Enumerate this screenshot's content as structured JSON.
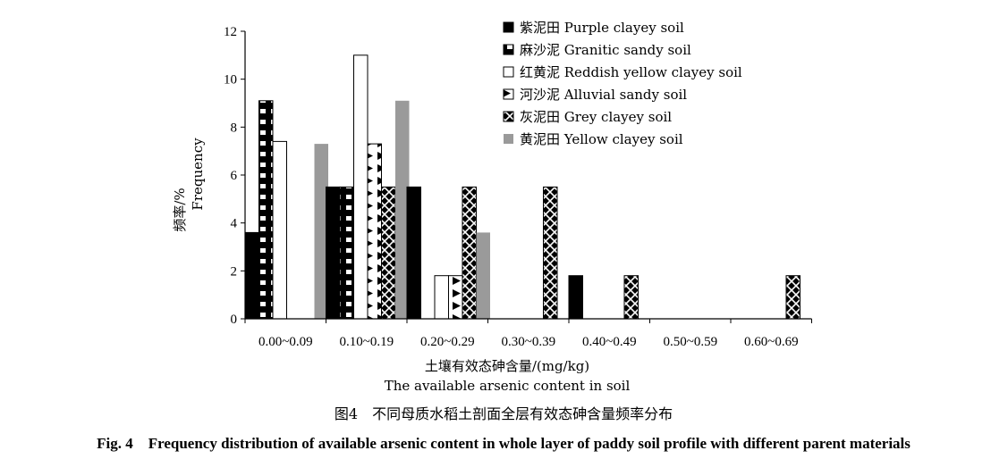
{
  "chart_data": {
    "type": "bar",
    "categories": [
      "0.00~0.09",
      "0.10~0.19",
      "0.20~0.29",
      "0.30~0.39",
      "0.40~0.49",
      "0.50~0.59",
      "0.60~0.69"
    ],
    "series": [
      {
        "name": "紫泥田 Purple clayey soil",
        "values": [
          3.6,
          5.5,
          5.5,
          0,
          1.8,
          0,
          0
        ]
      },
      {
        "name": "麻沙泥 Granitic sandy soil",
        "values": [
          9.1,
          5.5,
          0,
          0,
          0,
          0,
          0
        ]
      },
      {
        "name": "红黄泥 Reddish yellow clayey soil",
        "values": [
          7.4,
          11.0,
          1.8,
          0,
          0,
          0,
          0
        ]
      },
      {
        "name": "河沙泥 Alluvial sandy soil",
        "values": [
          0,
          7.3,
          1.8,
          0,
          0,
          0,
          0
        ]
      },
      {
        "name": "灰泥田 Grey clayey soil",
        "values": [
          0,
          5.5,
          5.5,
          5.5,
          1.8,
          0,
          1.8
        ]
      },
      {
        "name": "黄泥田 Yellow clayey soil",
        "values": [
          7.3,
          9.1,
          3.6,
          0,
          0,
          0,
          0
        ]
      }
    ],
    "ylim": [
      0,
      12
    ],
    "yticks": [
      "0",
      "2",
      "4",
      "6",
      "8",
      "10",
      "12"
    ],
    "ylabel_cn": "频率/%",
    "ylabel_en": "Frequency",
    "xlabel_cn": "土壤有效态砷含量/(mg/kg)",
    "xlabel_en": "The available arsenic content in soil",
    "legend_position": "top-right",
    "grid": false
  },
  "caption": {
    "cn": "图4　不同母质水稻土剖面全层有效态砷含量频率分布",
    "en": "Fig. 4　Frequency distribution of available arsenic content in whole layer of paddy soil profile with different parent materials"
  },
  "colors": {
    "purple": "#000000",
    "granitic": "#000000",
    "reddish": "#ffffff",
    "alluvial": "#000000",
    "grey": "#000000",
    "yellow": "#9a9a9a"
  }
}
